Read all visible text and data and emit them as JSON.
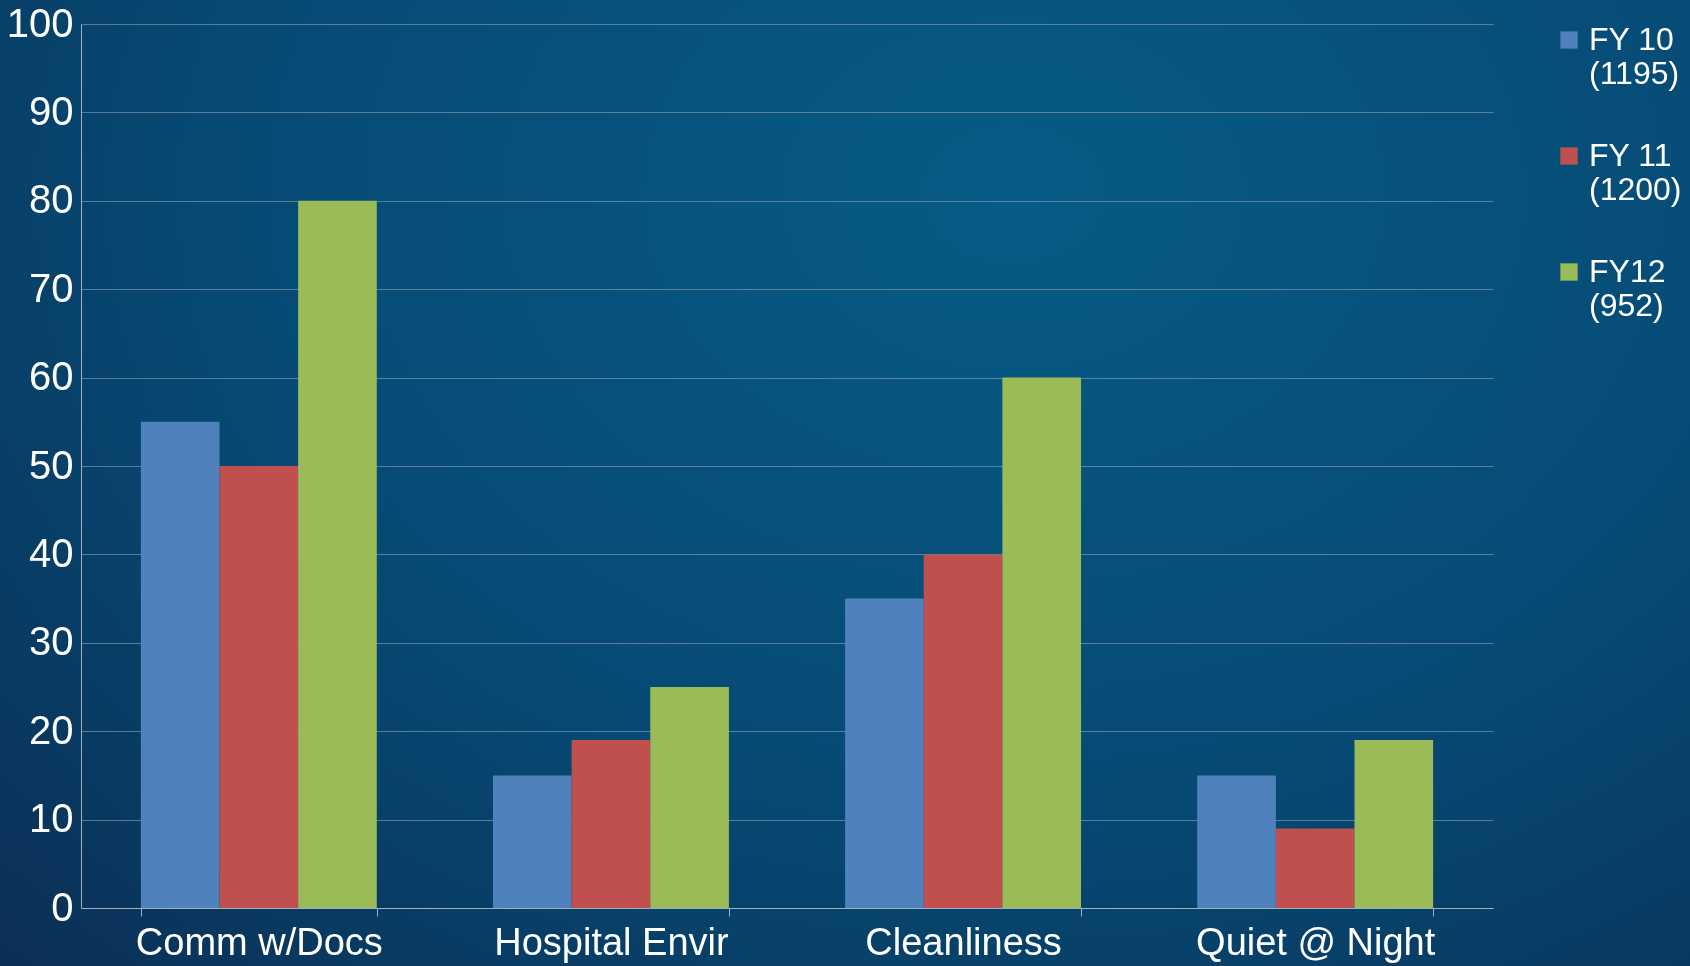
{
  "chart_data": {
    "type": "bar",
    "categories": [
      "Comm w/Docs",
      "Hospital Envir",
      "Cleanliness",
      "Quiet @ Night"
    ],
    "series": [
      {
        "name": "FY 10 (1195)",
        "color": "#4f81bd",
        "values": [
          55,
          15,
          35,
          15
        ]
      },
      {
        "name": "FY 11 (1200)",
        "color": "#c0504d",
        "values": [
          50,
          19,
          40,
          9
        ]
      },
      {
        "name": "FY12 (952)",
        "color": "#9bbb59",
        "values": [
          80,
          25,
          60,
          19
        ]
      }
    ],
    "ylim": [
      0,
      100
    ],
    "yticks": [
      0,
      10,
      20,
      30,
      40,
      50,
      60,
      70,
      80,
      90,
      100
    ],
    "grid": "y",
    "legend": "right"
  }
}
